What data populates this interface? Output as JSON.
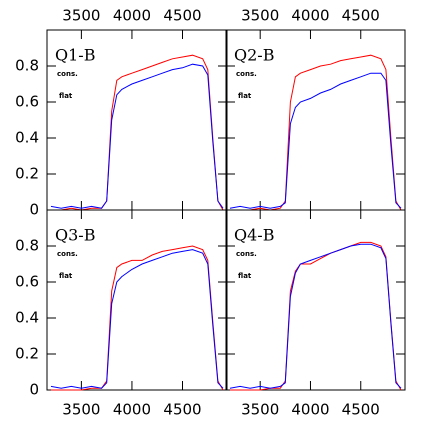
{
  "chart_data": [
    {
      "type": "line",
      "title": "Q1-B",
      "xlim": [
        3160,
        4940
      ],
      "ylim": [
        0,
        1
      ],
      "xticks": [
        3500,
        4000,
        4500
      ],
      "yticks": [
        0,
        0.2,
        0.4,
        0.6,
        0.8
      ],
      "x": [
        3200,
        3300,
        3400,
        3500,
        3600,
        3700,
        3750,
        3800,
        3850,
        3900,
        4000,
        4100,
        4200,
        4300,
        4400,
        4500,
        4600,
        4700,
        4750,
        4800,
        4850,
        4900
      ],
      "series": [
        {
          "name": "cons.",
          "color": "#ff0000",
          "values": [
            0,
            0,
            0.01,
            0,
            0.01,
            0.01,
            0.05,
            0.55,
            0.72,
            0.74,
            0.76,
            0.78,
            0.8,
            0.82,
            0.84,
            0.85,
            0.86,
            0.84,
            0.78,
            0.4,
            0.05,
            0
          ]
        },
        {
          "name": "flat",
          "color": "#0000ff",
          "values": [
            0.02,
            0.01,
            0.02,
            0.01,
            0.02,
            0.01,
            0.05,
            0.5,
            0.64,
            0.67,
            0.7,
            0.72,
            0.74,
            0.76,
            0.78,
            0.79,
            0.81,
            0.8,
            0.75,
            0.38,
            0.05,
            0.01
          ]
        }
      ]
    },
    {
      "type": "line",
      "title": "Q2-B",
      "xlim": [
        3160,
        4940
      ],
      "ylim": [
        0,
        1
      ],
      "xticks": [
        3500,
        4000,
        4500
      ],
      "yticks": [
        0,
        0.2,
        0.4,
        0.6,
        0.8
      ],
      "x": [
        3200,
        3300,
        3400,
        3500,
        3600,
        3700,
        3750,
        3800,
        3850,
        3900,
        4000,
        4100,
        4200,
        4300,
        4400,
        4500,
        4600,
        4700,
        4750,
        4800,
        4850,
        4900
      ],
      "series": [
        {
          "name": "cons.",
          "color": "#ff0000",
          "values": [
            0,
            0,
            0,
            0.01,
            0,
            0.01,
            0.05,
            0.6,
            0.74,
            0.76,
            0.78,
            0.8,
            0.81,
            0.83,
            0.84,
            0.85,
            0.86,
            0.84,
            0.78,
            0.4,
            0.05,
            0
          ]
        },
        {
          "name": "flat",
          "color": "#0000ff",
          "values": [
            0.01,
            0.02,
            0.01,
            0.02,
            0.01,
            0.02,
            0.04,
            0.48,
            0.57,
            0.6,
            0.62,
            0.65,
            0.67,
            0.7,
            0.72,
            0.74,
            0.76,
            0.76,
            0.72,
            0.36,
            0.04,
            0.01
          ]
        }
      ]
    },
    {
      "type": "line",
      "title": "Q3-B",
      "xlim": [
        3160,
        4940
      ],
      "ylim": [
        0,
        1
      ],
      "xticks": [
        3500,
        4000,
        4500
      ],
      "yticks": [
        0,
        0.2,
        0.4,
        0.6,
        0.8
      ],
      "x": [
        3200,
        3300,
        3400,
        3500,
        3600,
        3700,
        3750,
        3800,
        3850,
        3900,
        4000,
        4100,
        4200,
        4300,
        4400,
        4500,
        4600,
        4700,
        4750,
        4800,
        4850,
        4900
      ],
      "series": [
        {
          "name": "cons.",
          "color": "#ff0000",
          "values": [
            0,
            0,
            0,
            0,
            0.01,
            0.01,
            0.05,
            0.55,
            0.68,
            0.7,
            0.72,
            0.72,
            0.75,
            0.77,
            0.78,
            0.79,
            0.8,
            0.78,
            0.72,
            0.38,
            0.05,
            0
          ]
        },
        {
          "name": "flat",
          "color": "#0000ff",
          "values": [
            0.02,
            0.01,
            0.02,
            0.01,
            0.02,
            0.01,
            0.04,
            0.48,
            0.6,
            0.63,
            0.67,
            0.7,
            0.72,
            0.74,
            0.76,
            0.77,
            0.78,
            0.76,
            0.7,
            0.36,
            0.04,
            0.01
          ]
        }
      ]
    },
    {
      "type": "line",
      "title": "Q4-B",
      "xlim": [
        3160,
        4940
      ],
      "ylim": [
        0,
        1
      ],
      "xticks": [
        3500,
        4000,
        4500
      ],
      "yticks": [
        0,
        0.2,
        0.4,
        0.6,
        0.8
      ],
      "x": [
        3200,
        3300,
        3400,
        3500,
        3600,
        3700,
        3750,
        3800,
        3850,
        3900,
        4000,
        4100,
        4200,
        4300,
        4400,
        4500,
        4600,
        4700,
        4750,
        4800,
        4850,
        4900
      ],
      "series": [
        {
          "name": "cons.",
          "color": "#ff0000",
          "values": [
            0,
            0,
            0,
            0,
            0.01,
            0.01,
            0.05,
            0.55,
            0.66,
            0.7,
            0.7,
            0.73,
            0.76,
            0.78,
            0.8,
            0.82,
            0.82,
            0.8,
            0.74,
            0.38,
            0.05,
            0
          ]
        },
        {
          "name": "flat",
          "color": "#0000ff",
          "values": [
            0.01,
            0.02,
            0.01,
            0.02,
            0.01,
            0.02,
            0.04,
            0.52,
            0.65,
            0.7,
            0.72,
            0.74,
            0.76,
            0.78,
            0.8,
            0.81,
            0.81,
            0.79,
            0.73,
            0.37,
            0.04,
            0.01
          ]
        }
      ]
    }
  ]
}
